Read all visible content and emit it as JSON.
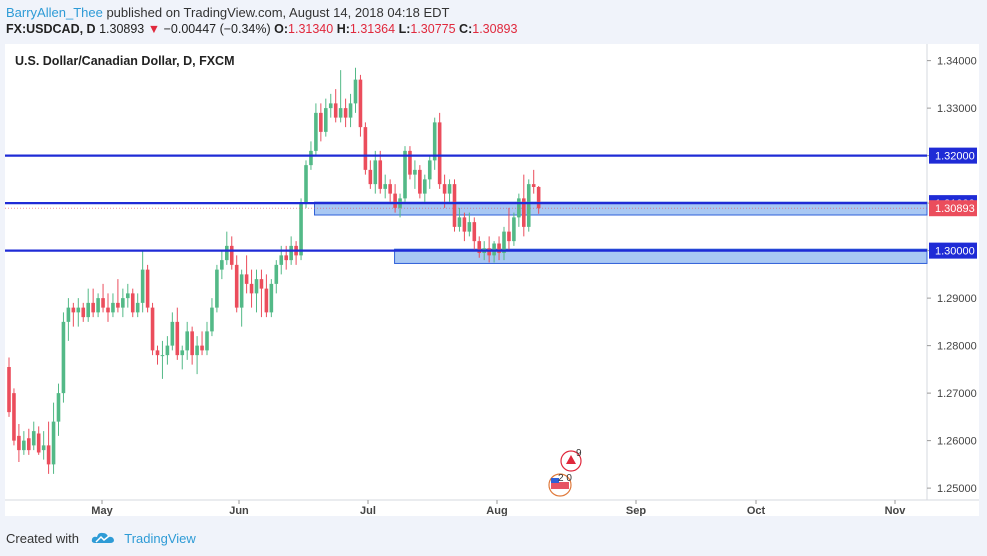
{
  "header": {
    "author": "BarryAllen_Thee",
    "published": "published on TradingView.com, August 14, 2018 04:18 EDT",
    "symbol": "FX:USDCAD, D",
    "last": "1.30893",
    "change": "−0.00447 (−0.34%)",
    "o_label": "O:",
    "o_value": "1.31340",
    "h_label": "H:",
    "h_value": "1.31364",
    "l_label": "L:",
    "l_value": "1.30775",
    "c_label": "C:",
    "c_value": "1.30893"
  },
  "footer": {
    "created": "Created with",
    "brand": "TradingView"
  },
  "colors": {
    "up": "#53b987",
    "down": "#eb4d5c",
    "level": "#1f2bd6",
    "zone_fill": "#a9c8f3",
    "zone_stroke": "#2e5fd8",
    "accent": "#2e9bd6"
  },
  "chart_data": {
    "type": "candlestick",
    "title": "U.S. Dollar/Canadian Dollar, D, FXCM",
    "y_ticks": [
      "1.34000",
      "1.33000",
      "1.32000",
      "1.31000",
      "1.30000",
      "1.29000",
      "1.28000",
      "1.27000",
      "1.26000",
      "1.25000"
    ],
    "ylim": [
      1.2475,
      1.3435
    ],
    "x_labels": [
      "May",
      "Jun",
      "Jul",
      "Aug",
      "Sep",
      "Oct",
      "Nov"
    ],
    "levels": [
      {
        "value": 1.32,
        "label": "1.32000"
      },
      {
        "value": 1.31,
        "label": "1.31000"
      },
      {
        "value": 1.3,
        "label": "1.30000"
      }
    ],
    "last_price": {
      "value": 1.30893,
      "label": "1.30893"
    },
    "zones": [
      {
        "from_bar": 0.58,
        "to_bar": 1.0,
        "low": 1.3075,
        "high": 1.3102
      },
      {
        "from_bar": 0.73,
        "to_bar": 1.0,
        "low": 1.2973,
        "high": 1.3003
      }
    ],
    "events": [
      {
        "label": "9",
        "type": "canada"
      },
      {
        "label": "2 0",
        "type": "usa"
      }
    ],
    "candles": [
      {
        "o": 1.2755,
        "h": 1.2775,
        "l": 1.265,
        "c": 1.266
      },
      {
        "o": 1.27,
        "h": 1.271,
        "l": 1.259,
        "c": 1.26
      },
      {
        "o": 1.261,
        "h": 1.2635,
        "l": 1.2555,
        "c": 1.258
      },
      {
        "o": 1.258,
        "h": 1.262,
        "l": 1.257,
        "c": 1.26
      },
      {
        "o": 1.2605,
        "h": 1.2625,
        "l": 1.257,
        "c": 1.258
      },
      {
        "o": 1.259,
        "h": 1.264,
        "l": 1.258,
        "c": 1.262
      },
      {
        "o": 1.2615,
        "h": 1.263,
        "l": 1.257,
        "c": 1.2575
      },
      {
        "o": 1.258,
        "h": 1.262,
        "l": 1.256,
        "c": 1.259
      },
      {
        "o": 1.259,
        "h": 1.264,
        "l": 1.253,
        "c": 1.255
      },
      {
        "o": 1.255,
        "h": 1.268,
        "l": 1.253,
        "c": 1.264
      },
      {
        "o": 1.264,
        "h": 1.272,
        "l": 1.261,
        "c": 1.27
      },
      {
        "o": 1.27,
        "h": 1.287,
        "l": 1.268,
        "c": 1.285
      },
      {
        "o": 1.285,
        "h": 1.29,
        "l": 1.281,
        "c": 1.288
      },
      {
        "o": 1.288,
        "h": 1.289,
        "l": 1.284,
        "c": 1.287
      },
      {
        "o": 1.287,
        "h": 1.29,
        "l": 1.284,
        "c": 1.288
      },
      {
        "o": 1.288,
        "h": 1.289,
        "l": 1.285,
        "c": 1.286
      },
      {
        "o": 1.286,
        "h": 1.292,
        "l": 1.285,
        "c": 1.289
      },
      {
        "o": 1.289,
        "h": 1.292,
        "l": 1.286,
        "c": 1.287
      },
      {
        "o": 1.287,
        "h": 1.291,
        "l": 1.286,
        "c": 1.29
      },
      {
        "o": 1.29,
        "h": 1.293,
        "l": 1.287,
        "c": 1.288
      },
      {
        "o": 1.288,
        "h": 1.291,
        "l": 1.285,
        "c": 1.287
      },
      {
        "o": 1.287,
        "h": 1.291,
        "l": 1.286,
        "c": 1.289
      },
      {
        "o": 1.289,
        "h": 1.294,
        "l": 1.287,
        "c": 1.288
      },
      {
        "o": 1.288,
        "h": 1.292,
        "l": 1.286,
        "c": 1.29
      },
      {
        "o": 1.29,
        "h": 1.293,
        "l": 1.288,
        "c": 1.291
      },
      {
        "o": 1.291,
        "h": 1.292,
        "l": 1.286,
        "c": 1.287
      },
      {
        "o": 1.287,
        "h": 1.291,
        "l": 1.286,
        "c": 1.289
      },
      {
        "o": 1.289,
        "h": 1.3,
        "l": 1.287,
        "c": 1.296
      },
      {
        "o": 1.296,
        "h": 1.297,
        "l": 1.287,
        "c": 1.288
      },
      {
        "o": 1.288,
        "h": 1.289,
        "l": 1.278,
        "c": 1.279
      },
      {
        "o": 1.279,
        "h": 1.28,
        "l": 1.276,
        "c": 1.278
      },
      {
        "o": 1.278,
        "h": 1.281,
        "l": 1.273,
        "c": 1.278
      },
      {
        "o": 1.278,
        "h": 1.282,
        "l": 1.276,
        "c": 1.28
      },
      {
        "o": 1.28,
        "h": 1.287,
        "l": 1.279,
        "c": 1.285
      },
      {
        "o": 1.285,
        "h": 1.288,
        "l": 1.277,
        "c": 1.278
      },
      {
        "o": 1.278,
        "h": 1.28,
        "l": 1.275,
        "c": 1.279
      },
      {
        "o": 1.279,
        "h": 1.285,
        "l": 1.277,
        "c": 1.283
      },
      {
        "o": 1.283,
        "h": 1.284,
        "l": 1.276,
        "c": 1.278
      },
      {
        "o": 1.278,
        "h": 1.282,
        "l": 1.274,
        "c": 1.28
      },
      {
        "o": 1.28,
        "h": 1.283,
        "l": 1.278,
        "c": 1.279
      },
      {
        "o": 1.279,
        "h": 1.285,
        "l": 1.278,
        "c": 1.283
      },
      {
        "o": 1.283,
        "h": 1.29,
        "l": 1.282,
        "c": 1.288
      },
      {
        "o": 1.288,
        "h": 1.297,
        "l": 1.287,
        "c": 1.296
      },
      {
        "o": 1.296,
        "h": 1.3,
        "l": 1.294,
        "c": 1.298
      },
      {
        "o": 1.298,
        "h": 1.304,
        "l": 1.297,
        "c": 1.301
      },
      {
        "o": 1.301,
        "h": 1.303,
        "l": 1.296,
        "c": 1.297
      },
      {
        "o": 1.297,
        "h": 1.299,
        "l": 1.287,
        "c": 1.288
      },
      {
        "o": 1.288,
        "h": 1.296,
        "l": 1.284,
        "c": 1.295
      },
      {
        "o": 1.295,
        "h": 1.299,
        "l": 1.291,
        "c": 1.293
      },
      {
        "o": 1.293,
        "h": 1.296,
        "l": 1.288,
        "c": 1.291
      },
      {
        "o": 1.291,
        "h": 1.296,
        "l": 1.287,
        "c": 1.294
      },
      {
        "o": 1.294,
        "h": 1.296,
        "l": 1.286,
        "c": 1.292
      },
      {
        "o": 1.292,
        "h": 1.295,
        "l": 1.286,
        "c": 1.287
      },
      {
        "o": 1.287,
        "h": 1.294,
        "l": 1.286,
        "c": 1.293
      },
      {
        "o": 1.293,
        "h": 1.298,
        "l": 1.291,
        "c": 1.297
      },
      {
        "o": 1.297,
        "h": 1.301,
        "l": 1.295,
        "c": 1.299
      },
      {
        "o": 1.299,
        "h": 1.301,
        "l": 1.296,
        "c": 1.298
      },
      {
        "o": 1.298,
        "h": 1.303,
        "l": 1.297,
        "c": 1.301
      },
      {
        "o": 1.301,
        "h": 1.302,
        "l": 1.297,
        "c": 1.299
      },
      {
        "o": 1.299,
        "h": 1.311,
        "l": 1.298,
        "c": 1.31
      },
      {
        "o": 1.31,
        "h": 1.319,
        "l": 1.309,
        "c": 1.318
      },
      {
        "o": 1.318,
        "h": 1.323,
        "l": 1.317,
        "c": 1.321
      },
      {
        "o": 1.321,
        "h": 1.331,
        "l": 1.32,
        "c": 1.329
      },
      {
        "o": 1.329,
        "h": 1.331,
        "l": 1.323,
        "c": 1.325
      },
      {
        "o": 1.325,
        "h": 1.332,
        "l": 1.324,
        "c": 1.33
      },
      {
        "o": 1.33,
        "h": 1.333,
        "l": 1.328,
        "c": 1.331
      },
      {
        "o": 1.331,
        "h": 1.334,
        "l": 1.327,
        "c": 1.328
      },
      {
        "o": 1.328,
        "h": 1.338,
        "l": 1.327,
        "c": 1.33
      },
      {
        "o": 1.33,
        "h": 1.332,
        "l": 1.326,
        "c": 1.328
      },
      {
        "o": 1.328,
        "h": 1.333,
        "l": 1.326,
        "c": 1.331
      },
      {
        "o": 1.331,
        "h": 1.3385,
        "l": 1.329,
        "c": 1.336
      },
      {
        "o": 1.336,
        "h": 1.337,
        "l": 1.324,
        "c": 1.326
      },
      {
        "o": 1.326,
        "h": 1.327,
        "l": 1.316,
        "c": 1.317
      },
      {
        "o": 1.317,
        "h": 1.319,
        "l": 1.313,
        "c": 1.314
      },
      {
        "o": 1.314,
        "h": 1.321,
        "l": 1.312,
        "c": 1.319
      },
      {
        "o": 1.319,
        "h": 1.321,
        "l": 1.312,
        "c": 1.313
      },
      {
        "o": 1.313,
        "h": 1.316,
        "l": 1.311,
        "c": 1.314
      },
      {
        "o": 1.314,
        "h": 1.315,
        "l": 1.31,
        "c": 1.312
      },
      {
        "o": 1.312,
        "h": 1.314,
        "l": 1.308,
        "c": 1.309
      },
      {
        "o": 1.309,
        "h": 1.312,
        "l": 1.307,
        "c": 1.311
      },
      {
        "o": 1.311,
        "h": 1.322,
        "l": 1.31,
        "c": 1.321
      },
      {
        "o": 1.321,
        "h": 1.322,
        "l": 1.315,
        "c": 1.316
      },
      {
        "o": 1.316,
        "h": 1.319,
        "l": 1.313,
        "c": 1.317
      },
      {
        "o": 1.317,
        "h": 1.318,
        "l": 1.311,
        "c": 1.312
      },
      {
        "o": 1.312,
        "h": 1.316,
        "l": 1.31,
        "c": 1.315
      },
      {
        "o": 1.315,
        "h": 1.32,
        "l": 1.313,
        "c": 1.319
      },
      {
        "o": 1.319,
        "h": 1.328,
        "l": 1.317,
        "c": 1.327
      },
      {
        "o": 1.327,
        "h": 1.329,
        "l": 1.313,
        "c": 1.314
      },
      {
        "o": 1.314,
        "h": 1.316,
        "l": 1.309,
        "c": 1.312
      },
      {
        "o": 1.312,
        "h": 1.315,
        "l": 1.31,
        "c": 1.314
      },
      {
        "o": 1.314,
        "h": 1.315,
        "l": 1.304,
        "c": 1.305
      },
      {
        "o": 1.305,
        "h": 1.309,
        "l": 1.304,
        "c": 1.307
      },
      {
        "o": 1.307,
        "h": 1.308,
        "l": 1.302,
        "c": 1.304
      },
      {
        "o": 1.304,
        "h": 1.308,
        "l": 1.303,
        "c": 1.306
      },
      {
        "o": 1.306,
        "h": 1.307,
        "l": 1.3,
        "c": 1.302
      },
      {
        "o": 1.302,
        "h": 1.303,
        "l": 1.2985,
        "c": 1.2995
      },
      {
        "o": 1.2995,
        "h": 1.302,
        "l": 1.298,
        "c": 1.3005
      },
      {
        "o": 1.3005,
        "h": 1.303,
        "l": 1.2975,
        "c": 1.299
      },
      {
        "o": 1.299,
        "h": 1.302,
        "l": 1.2975,
        "c": 1.3015
      },
      {
        "o": 1.3015,
        "h": 1.303,
        "l": 1.298,
        "c": 1.2995
      },
      {
        "o": 1.2995,
        "h": 1.305,
        "l": 1.298,
        "c": 1.304
      },
      {
        "o": 1.304,
        "h": 1.309,
        "l": 1.3,
        "c": 1.302
      },
      {
        "o": 1.302,
        "h": 1.308,
        "l": 1.301,
        "c": 1.307
      },
      {
        "o": 1.307,
        "h": 1.312,
        "l": 1.305,
        "c": 1.311
      },
      {
        "o": 1.311,
        "h": 1.316,
        "l": 1.303,
        "c": 1.305
      },
      {
        "o": 1.305,
        "h": 1.315,
        "l": 1.304,
        "c": 1.314
      },
      {
        "o": 1.314,
        "h": 1.317,
        "l": 1.312,
        "c": 1.3134
      },
      {
        "o": 1.3134,
        "h": 1.3136,
        "l": 1.30775,
        "c": 1.30893
      }
    ]
  }
}
